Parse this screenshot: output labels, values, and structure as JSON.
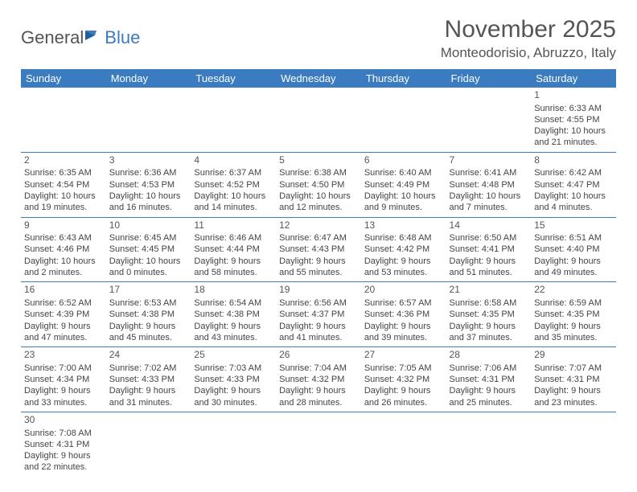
{
  "logo": {
    "text1": "General",
    "text2": "Blue"
  },
  "title": "November 2025",
  "location": "Monteodorisio, Abruzzo, Italy",
  "colors": {
    "header_bg": "#3b7bbf",
    "header_text": "#ffffff",
    "border": "#3b7bbf",
    "body_text": "#444444",
    "title_text": "#555555"
  },
  "weekdays": [
    "Sunday",
    "Monday",
    "Tuesday",
    "Wednesday",
    "Thursday",
    "Friday",
    "Saturday"
  ],
  "weeks": [
    [
      null,
      null,
      null,
      null,
      null,
      null,
      {
        "day": "1",
        "sunrise": "Sunrise: 6:33 AM",
        "sunset": "Sunset: 4:55 PM",
        "daylight1": "Daylight: 10 hours",
        "daylight2": "and 21 minutes."
      }
    ],
    [
      {
        "day": "2",
        "sunrise": "Sunrise: 6:35 AM",
        "sunset": "Sunset: 4:54 PM",
        "daylight1": "Daylight: 10 hours",
        "daylight2": "and 19 minutes."
      },
      {
        "day": "3",
        "sunrise": "Sunrise: 6:36 AM",
        "sunset": "Sunset: 4:53 PM",
        "daylight1": "Daylight: 10 hours",
        "daylight2": "and 16 minutes."
      },
      {
        "day": "4",
        "sunrise": "Sunrise: 6:37 AM",
        "sunset": "Sunset: 4:52 PM",
        "daylight1": "Daylight: 10 hours",
        "daylight2": "and 14 minutes."
      },
      {
        "day": "5",
        "sunrise": "Sunrise: 6:38 AM",
        "sunset": "Sunset: 4:50 PM",
        "daylight1": "Daylight: 10 hours",
        "daylight2": "and 12 minutes."
      },
      {
        "day": "6",
        "sunrise": "Sunrise: 6:40 AM",
        "sunset": "Sunset: 4:49 PM",
        "daylight1": "Daylight: 10 hours",
        "daylight2": "and 9 minutes."
      },
      {
        "day": "7",
        "sunrise": "Sunrise: 6:41 AM",
        "sunset": "Sunset: 4:48 PM",
        "daylight1": "Daylight: 10 hours",
        "daylight2": "and 7 minutes."
      },
      {
        "day": "8",
        "sunrise": "Sunrise: 6:42 AM",
        "sunset": "Sunset: 4:47 PM",
        "daylight1": "Daylight: 10 hours",
        "daylight2": "and 4 minutes."
      }
    ],
    [
      {
        "day": "9",
        "sunrise": "Sunrise: 6:43 AM",
        "sunset": "Sunset: 4:46 PM",
        "daylight1": "Daylight: 10 hours",
        "daylight2": "and 2 minutes."
      },
      {
        "day": "10",
        "sunrise": "Sunrise: 6:45 AM",
        "sunset": "Sunset: 4:45 PM",
        "daylight1": "Daylight: 10 hours",
        "daylight2": "and 0 minutes."
      },
      {
        "day": "11",
        "sunrise": "Sunrise: 6:46 AM",
        "sunset": "Sunset: 4:44 PM",
        "daylight1": "Daylight: 9 hours",
        "daylight2": "and 58 minutes."
      },
      {
        "day": "12",
        "sunrise": "Sunrise: 6:47 AM",
        "sunset": "Sunset: 4:43 PM",
        "daylight1": "Daylight: 9 hours",
        "daylight2": "and 55 minutes."
      },
      {
        "day": "13",
        "sunrise": "Sunrise: 6:48 AM",
        "sunset": "Sunset: 4:42 PM",
        "daylight1": "Daylight: 9 hours",
        "daylight2": "and 53 minutes."
      },
      {
        "day": "14",
        "sunrise": "Sunrise: 6:50 AM",
        "sunset": "Sunset: 4:41 PM",
        "daylight1": "Daylight: 9 hours",
        "daylight2": "and 51 minutes."
      },
      {
        "day": "15",
        "sunrise": "Sunrise: 6:51 AM",
        "sunset": "Sunset: 4:40 PM",
        "daylight1": "Daylight: 9 hours",
        "daylight2": "and 49 minutes."
      }
    ],
    [
      {
        "day": "16",
        "sunrise": "Sunrise: 6:52 AM",
        "sunset": "Sunset: 4:39 PM",
        "daylight1": "Daylight: 9 hours",
        "daylight2": "and 47 minutes."
      },
      {
        "day": "17",
        "sunrise": "Sunrise: 6:53 AM",
        "sunset": "Sunset: 4:38 PM",
        "daylight1": "Daylight: 9 hours",
        "daylight2": "and 45 minutes."
      },
      {
        "day": "18",
        "sunrise": "Sunrise: 6:54 AM",
        "sunset": "Sunset: 4:38 PM",
        "daylight1": "Daylight: 9 hours",
        "daylight2": "and 43 minutes."
      },
      {
        "day": "19",
        "sunrise": "Sunrise: 6:56 AM",
        "sunset": "Sunset: 4:37 PM",
        "daylight1": "Daylight: 9 hours",
        "daylight2": "and 41 minutes."
      },
      {
        "day": "20",
        "sunrise": "Sunrise: 6:57 AM",
        "sunset": "Sunset: 4:36 PM",
        "daylight1": "Daylight: 9 hours",
        "daylight2": "and 39 minutes."
      },
      {
        "day": "21",
        "sunrise": "Sunrise: 6:58 AM",
        "sunset": "Sunset: 4:35 PM",
        "daylight1": "Daylight: 9 hours",
        "daylight2": "and 37 minutes."
      },
      {
        "day": "22",
        "sunrise": "Sunrise: 6:59 AM",
        "sunset": "Sunset: 4:35 PM",
        "daylight1": "Daylight: 9 hours",
        "daylight2": "and 35 minutes."
      }
    ],
    [
      {
        "day": "23",
        "sunrise": "Sunrise: 7:00 AM",
        "sunset": "Sunset: 4:34 PM",
        "daylight1": "Daylight: 9 hours",
        "daylight2": "and 33 minutes."
      },
      {
        "day": "24",
        "sunrise": "Sunrise: 7:02 AM",
        "sunset": "Sunset: 4:33 PM",
        "daylight1": "Daylight: 9 hours",
        "daylight2": "and 31 minutes."
      },
      {
        "day": "25",
        "sunrise": "Sunrise: 7:03 AM",
        "sunset": "Sunset: 4:33 PM",
        "daylight1": "Daylight: 9 hours",
        "daylight2": "and 30 minutes."
      },
      {
        "day": "26",
        "sunrise": "Sunrise: 7:04 AM",
        "sunset": "Sunset: 4:32 PM",
        "daylight1": "Daylight: 9 hours",
        "daylight2": "and 28 minutes."
      },
      {
        "day": "27",
        "sunrise": "Sunrise: 7:05 AM",
        "sunset": "Sunset: 4:32 PM",
        "daylight1": "Daylight: 9 hours",
        "daylight2": "and 26 minutes."
      },
      {
        "day": "28",
        "sunrise": "Sunrise: 7:06 AM",
        "sunset": "Sunset: 4:31 PM",
        "daylight1": "Daylight: 9 hours",
        "daylight2": "and 25 minutes."
      },
      {
        "day": "29",
        "sunrise": "Sunrise: 7:07 AM",
        "sunset": "Sunset: 4:31 PM",
        "daylight1": "Daylight: 9 hours",
        "daylight2": "and 23 minutes."
      }
    ],
    [
      {
        "day": "30",
        "sunrise": "Sunrise: 7:08 AM",
        "sunset": "Sunset: 4:31 PM",
        "daylight1": "Daylight: 9 hours",
        "daylight2": "and 22 minutes."
      },
      null,
      null,
      null,
      null,
      null,
      null
    ]
  ]
}
